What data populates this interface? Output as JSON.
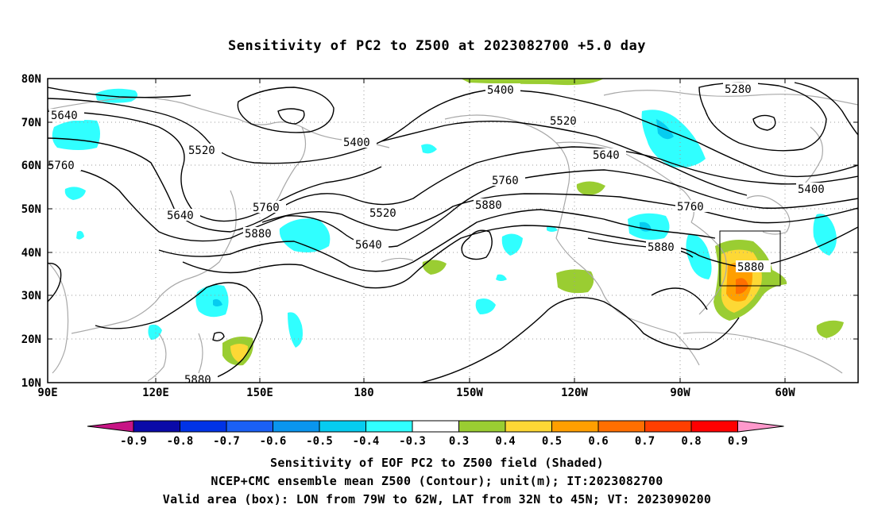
{
  "title": "Sensitivity of PC2 to Z500 at 2023082700 +5.0 day",
  "lat_labels": [
    "80N",
    "70N",
    "60N",
    "50N",
    "40N",
    "30N",
    "20N",
    "10N"
  ],
  "lon_labels": [
    "90E",
    "120E",
    "150E",
    "180",
    "150W",
    "120W",
    "90W",
    "60W"
  ],
  "contour_labels": [
    "5640",
    "5520",
    "5400",
    "5280",
    "5760",
    "5640",
    "5400",
    "5520",
    "5640",
    "5760",
    "5880",
    "5760",
    "5520",
    "5640",
    "5760",
    "5880",
    "5880",
    "5400",
    "5880",
    "5880"
  ],
  "colorbar": {
    "labels": [
      "-0.9",
      "-0.8",
      "-0.7",
      "-0.6",
      "-0.5",
      "-0.4",
      "-0.3",
      "0.3",
      "0.4",
      "0.5",
      "0.6",
      "0.7",
      "0.8",
      "0.9"
    ],
    "colors": [
      "#0a0aa8",
      "#0033e6",
      "#1a60f5",
      "#0a95ee",
      "#06ccf0",
      "#30ffff",
      "#ffffff",
      "#9acd32",
      "#fdd835",
      "#ff9f00",
      "#ff6f00",
      "#ff3f00",
      "#ff0000"
    ],
    "low_arrow_color": "#c71585",
    "high_arrow_color": "#ff99cc"
  },
  "captions": {
    "line1": "Sensitivity of EOF PC2 to Z500 field (Shaded)",
    "line2": "NCEP+CMC ensemble mean Z500 (Contour); unit(m); IT:2023082700",
    "line3": "Valid area (box): LON from 79W to 62W, LAT from 32N to 45N; VT: 2023090200"
  },
  "valid_box": {
    "lon_min": -79,
    "lon_max": -62,
    "lat_min": 32,
    "lat_max": 45
  }
}
